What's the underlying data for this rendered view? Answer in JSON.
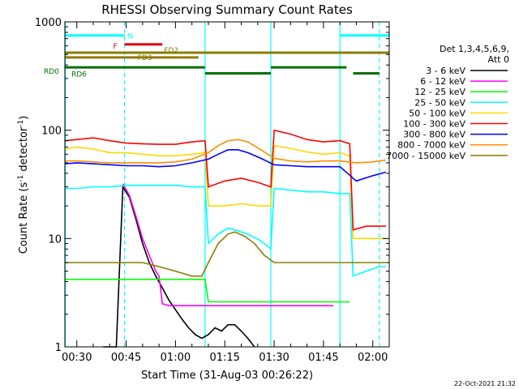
{
  "chart_data": {
    "type": "line",
    "title": "RHESSI Observing Summary Count Rates",
    "xlabel": "Start Time (31-Aug-03 00:26:22)",
    "ylabel": "Count Rate (s",
    "ylabel_sup": "-1",
    "ylabel_tail": " detector",
    "ylabel_close": ")",
    "yscale": "log",
    "ylim": [
      1,
      1000
    ],
    "xlim": [
      "00:26:22",
      "02:05:00"
    ],
    "x_ticks": [
      "00:30",
      "00:45",
      "01:00",
      "01:15",
      "01:30",
      "01:45",
      "02:00"
    ],
    "y_ticks": [
      "1",
      "10",
      "100",
      "1000"
    ],
    "legend_header": [
      "Det 1,3,4,5,6,9,",
      "Att 0"
    ],
    "series": [
      {
        "name": "3 - 6 keV",
        "color": "#000000",
        "x": [
          "00:38",
          "00:42",
          "00:44",
          "00:46",
          "00:48",
          "00:50",
          "00:52",
          "00:54",
          "00:56",
          "00:58",
          "01:00",
          "01:02",
          "01:04",
          "01:06",
          "01:08",
          "01:10",
          "01:12",
          "01:14",
          "01:16",
          "01:18",
          "01:20",
          "01:22",
          "01:24"
        ],
        "values": [
          1,
          1,
          30,
          24,
          15,
          9,
          6,
          4.5,
          3.5,
          2.7,
          2.2,
          1.8,
          1.5,
          1.3,
          1.2,
          1.3,
          1.5,
          1.4,
          1.6,
          1.6,
          1.4,
          1.2,
          1
        ]
      },
      {
        "name": "6 - 12 keV",
        "color": "#ff00ff",
        "x": [
          "00:44",
          "00:46",
          "00:48",
          "00:50",
          "00:52",
          "00:54",
          "00:55",
          "00:56",
          "00:58",
          "01:00",
          "01:05",
          "01:10",
          "01:15",
          "01:20",
          "01:25",
          "01:30",
          "01:35",
          "01:40",
          "01:45",
          "01:47",
          "01:48"
        ],
        "values": [
          32,
          25,
          16,
          10,
          7,
          5,
          4.5,
          2.5,
          2.4,
          2.4,
          2.4,
          2.4,
          2.4,
          2.4,
          2.4,
          2.4,
          2.4,
          2.4,
          2.4,
          2.4,
          2.4
        ]
      },
      {
        "name": "12 - 25 keV",
        "color": "#00ff00",
        "x": [
          "00:26:30",
          "00:30",
          "00:35",
          "00:40",
          "00:45",
          "00:50",
          "00:55",
          "01:00",
          "01:05",
          "01:09",
          "01:10",
          "01:15",
          "01:20",
          "01:25",
          "01:30",
          "01:35",
          "01:40",
          "01:45",
          "01:50",
          "01:53"
        ],
        "values": [
          4.2,
          4.2,
          4.2,
          4.2,
          4.2,
          4.2,
          4.2,
          4.2,
          4.2,
          4.2,
          2.6,
          2.6,
          2.6,
          2.6,
          2.6,
          2.6,
          2.6,
          2.6,
          2.6,
          2.6
        ]
      },
      {
        "name": "25 - 50 keV",
        "color": "#00ffff",
        "x": [
          "00:26:30",
          "00:30",
          "00:35",
          "00:40",
          "00:45",
          "00:50",
          "00:55",
          "01:00",
          "01:05",
          "01:09",
          "01:10",
          "01:13",
          "01:16",
          "01:18",
          "01:22",
          "01:26",
          "01:29",
          "01:30",
          "01:35",
          "01:40",
          "01:45",
          "01:50",
          "01:53",
          "01:54",
          "01:58",
          "02:02",
          "02:04"
        ],
        "values": [
          29,
          29,
          30,
          30,
          31,
          31,
          31,
          31,
          30,
          30,
          9,
          11,
          12.5,
          12,
          11,
          9.5,
          8,
          29,
          28,
          27,
          27,
          26,
          26,
          4.5,
          5,
          5.5,
          5.5
        ]
      },
      {
        "name": "50 - 100 keV",
        "color": "#ffd700",
        "x": [
          "00:26:30",
          "00:30",
          "00:35",
          "00:40",
          "00:45",
          "00:50",
          "00:55",
          "01:00",
          "01:05",
          "01:09",
          "01:10",
          "01:15",
          "01:20",
          "01:25",
          "01:29",
          "01:30",
          "01:35",
          "01:40",
          "01:45",
          "01:50",
          "01:53",
          "01:54",
          "01:58",
          "02:02",
          "02:04"
        ],
        "values": [
          67,
          70,
          67,
          62,
          62,
          60,
          58,
          58,
          60,
          62,
          20,
          20,
          21,
          20,
          20,
          72,
          68,
          63,
          60,
          62,
          58,
          10,
          10,
          10,
          10
        ]
      },
      {
        "name": "100 - 300 keV",
        "color": "#ff0000",
        "x": [
          "00:26:30",
          "00:30",
          "00:35",
          "00:40",
          "00:45",
          "00:50",
          "00:55",
          "01:00",
          "01:05",
          "01:09",
          "01:10",
          "01:15",
          "01:20",
          "01:25",
          "01:29",
          "01:30",
          "01:35",
          "01:40",
          "01:45",
          "01:50",
          "01:53",
          "01:54",
          "01:58",
          "02:02",
          "02:04"
        ],
        "values": [
          80,
          82,
          85,
          80,
          76,
          75,
          74,
          74,
          78,
          80,
          30,
          34,
          36,
          33,
          30,
          100,
          92,
          82,
          78,
          80,
          75,
          12,
          13,
          13,
          13
        ]
      },
      {
        "name": "300 - 800 keV",
        "color": "#0000ff",
        "x": [
          "00:26:30",
          "00:30",
          "00:35",
          "00:40",
          "00:45",
          "00:50",
          "00:55",
          "01:00",
          "01:05",
          "01:10",
          "01:13",
          "01:16",
          "01:19",
          "01:22",
          "01:26",
          "01:30",
          "01:35",
          "01:40",
          "01:45",
          "01:50",
          "01:55",
          "02:00",
          "02:04"
        ],
        "values": [
          49,
          50,
          49,
          48,
          47,
          47,
          46,
          47,
          50,
          54,
          60,
          66,
          66,
          62,
          55,
          48,
          47,
          46,
          46,
          46,
          34,
          38,
          41
        ]
      },
      {
        "name": "800 - 7000 keV",
        "color": "#ff8c00",
        "x": [
          "00:26:30",
          "00:30",
          "00:35",
          "00:40",
          "00:45",
          "00:50",
          "00:55",
          "01:00",
          "01:05",
          "01:10",
          "01:13",
          "01:16",
          "01:19",
          "01:22",
          "01:26",
          "01:30",
          "01:35",
          "01:40",
          "01:45",
          "01:50",
          "01:55",
          "02:00",
          "02:04"
        ],
        "values": [
          52,
          52,
          51,
          50,
          50,
          50,
          50,
          51,
          54,
          62,
          72,
          80,
          82,
          78,
          66,
          55,
          52,
          51,
          52,
          52,
          50,
          51,
          53
        ]
      },
      {
        "name": "7000 - 15000 keV",
        "color": "#8b7d00",
        "x": [
          "00:26:30",
          "00:30",
          "00:35",
          "00:40",
          "00:45",
          "00:50",
          "00:55",
          "01:00",
          "01:05",
          "01:08",
          "01:10",
          "01:13",
          "01:16",
          "01:18",
          "01:21",
          "01:24",
          "01:27",
          "01:30",
          "01:35",
          "01:40",
          "01:45",
          "01:50",
          "01:55",
          "02:00",
          "02:04"
        ],
        "values": [
          6,
          6,
          6,
          6,
          6,
          6,
          5.5,
          5,
          4.5,
          4.5,
          6,
          9,
          11,
          11.5,
          10.5,
          9,
          7,
          6,
          6,
          6,
          6,
          6,
          6,
          6,
          6
        ]
      }
    ],
    "attenuator_bars": [
      {
        "label": "N",
        "color": "#00ffff",
        "level": 750,
        "spans": [
          [
            "00:26:22",
            "00:44:30"
          ],
          [
            "01:50:00",
            "02:05:00"
          ]
        ]
      },
      {
        "label": "F",
        "color": "#e00000",
        "level": 620,
        "spans": [
          [
            "00:44:30",
            "00:56:00"
          ]
        ]
      },
      {
        "label": "FD2",
        "color": "#8b7d00",
        "level": 520,
        "spans": [
          [
            "00:26:22",
            "02:05:00"
          ]
        ]
      },
      {
        "label": "FD3",
        "color": "#8b7d00",
        "level": 470,
        "spans": [
          [
            "00:26:22",
            "01:07:00"
          ]
        ]
      },
      {
        "label": "RD0",
        "color": "#007000",
        "level": 380,
        "spans": [
          [
            "00:26:22",
            "01:09:00"
          ],
          [
            "01:29:00",
            "01:52:00"
          ]
        ]
      },
      {
        "label": "RD6",
        "color": "#007000",
        "level": 335,
        "spans": [
          [
            "01:09:00",
            "01:29:00"
          ],
          [
            "01:54:00",
            "02:02:00"
          ]
        ]
      }
    ],
    "vertical_markers": [
      {
        "color": "#00ffff",
        "style": "solid",
        "x": "00:26:30"
      },
      {
        "color": "#00ffff",
        "style": "dashed",
        "x": "00:44:30"
      },
      {
        "color": "#00ffff",
        "style": "solid",
        "x": "01:09:00"
      },
      {
        "color": "#00ffff",
        "style": "solid",
        "x": "01:29:00"
      },
      {
        "color": "#00ffff",
        "style": "solid",
        "x": "01:50:00"
      },
      {
        "color": "#00ffff",
        "style": "dashed",
        "x": "02:02:00"
      }
    ],
    "grid": false,
    "legend_position": "right"
  },
  "footer_date": "22-Oct-2021 21:32"
}
